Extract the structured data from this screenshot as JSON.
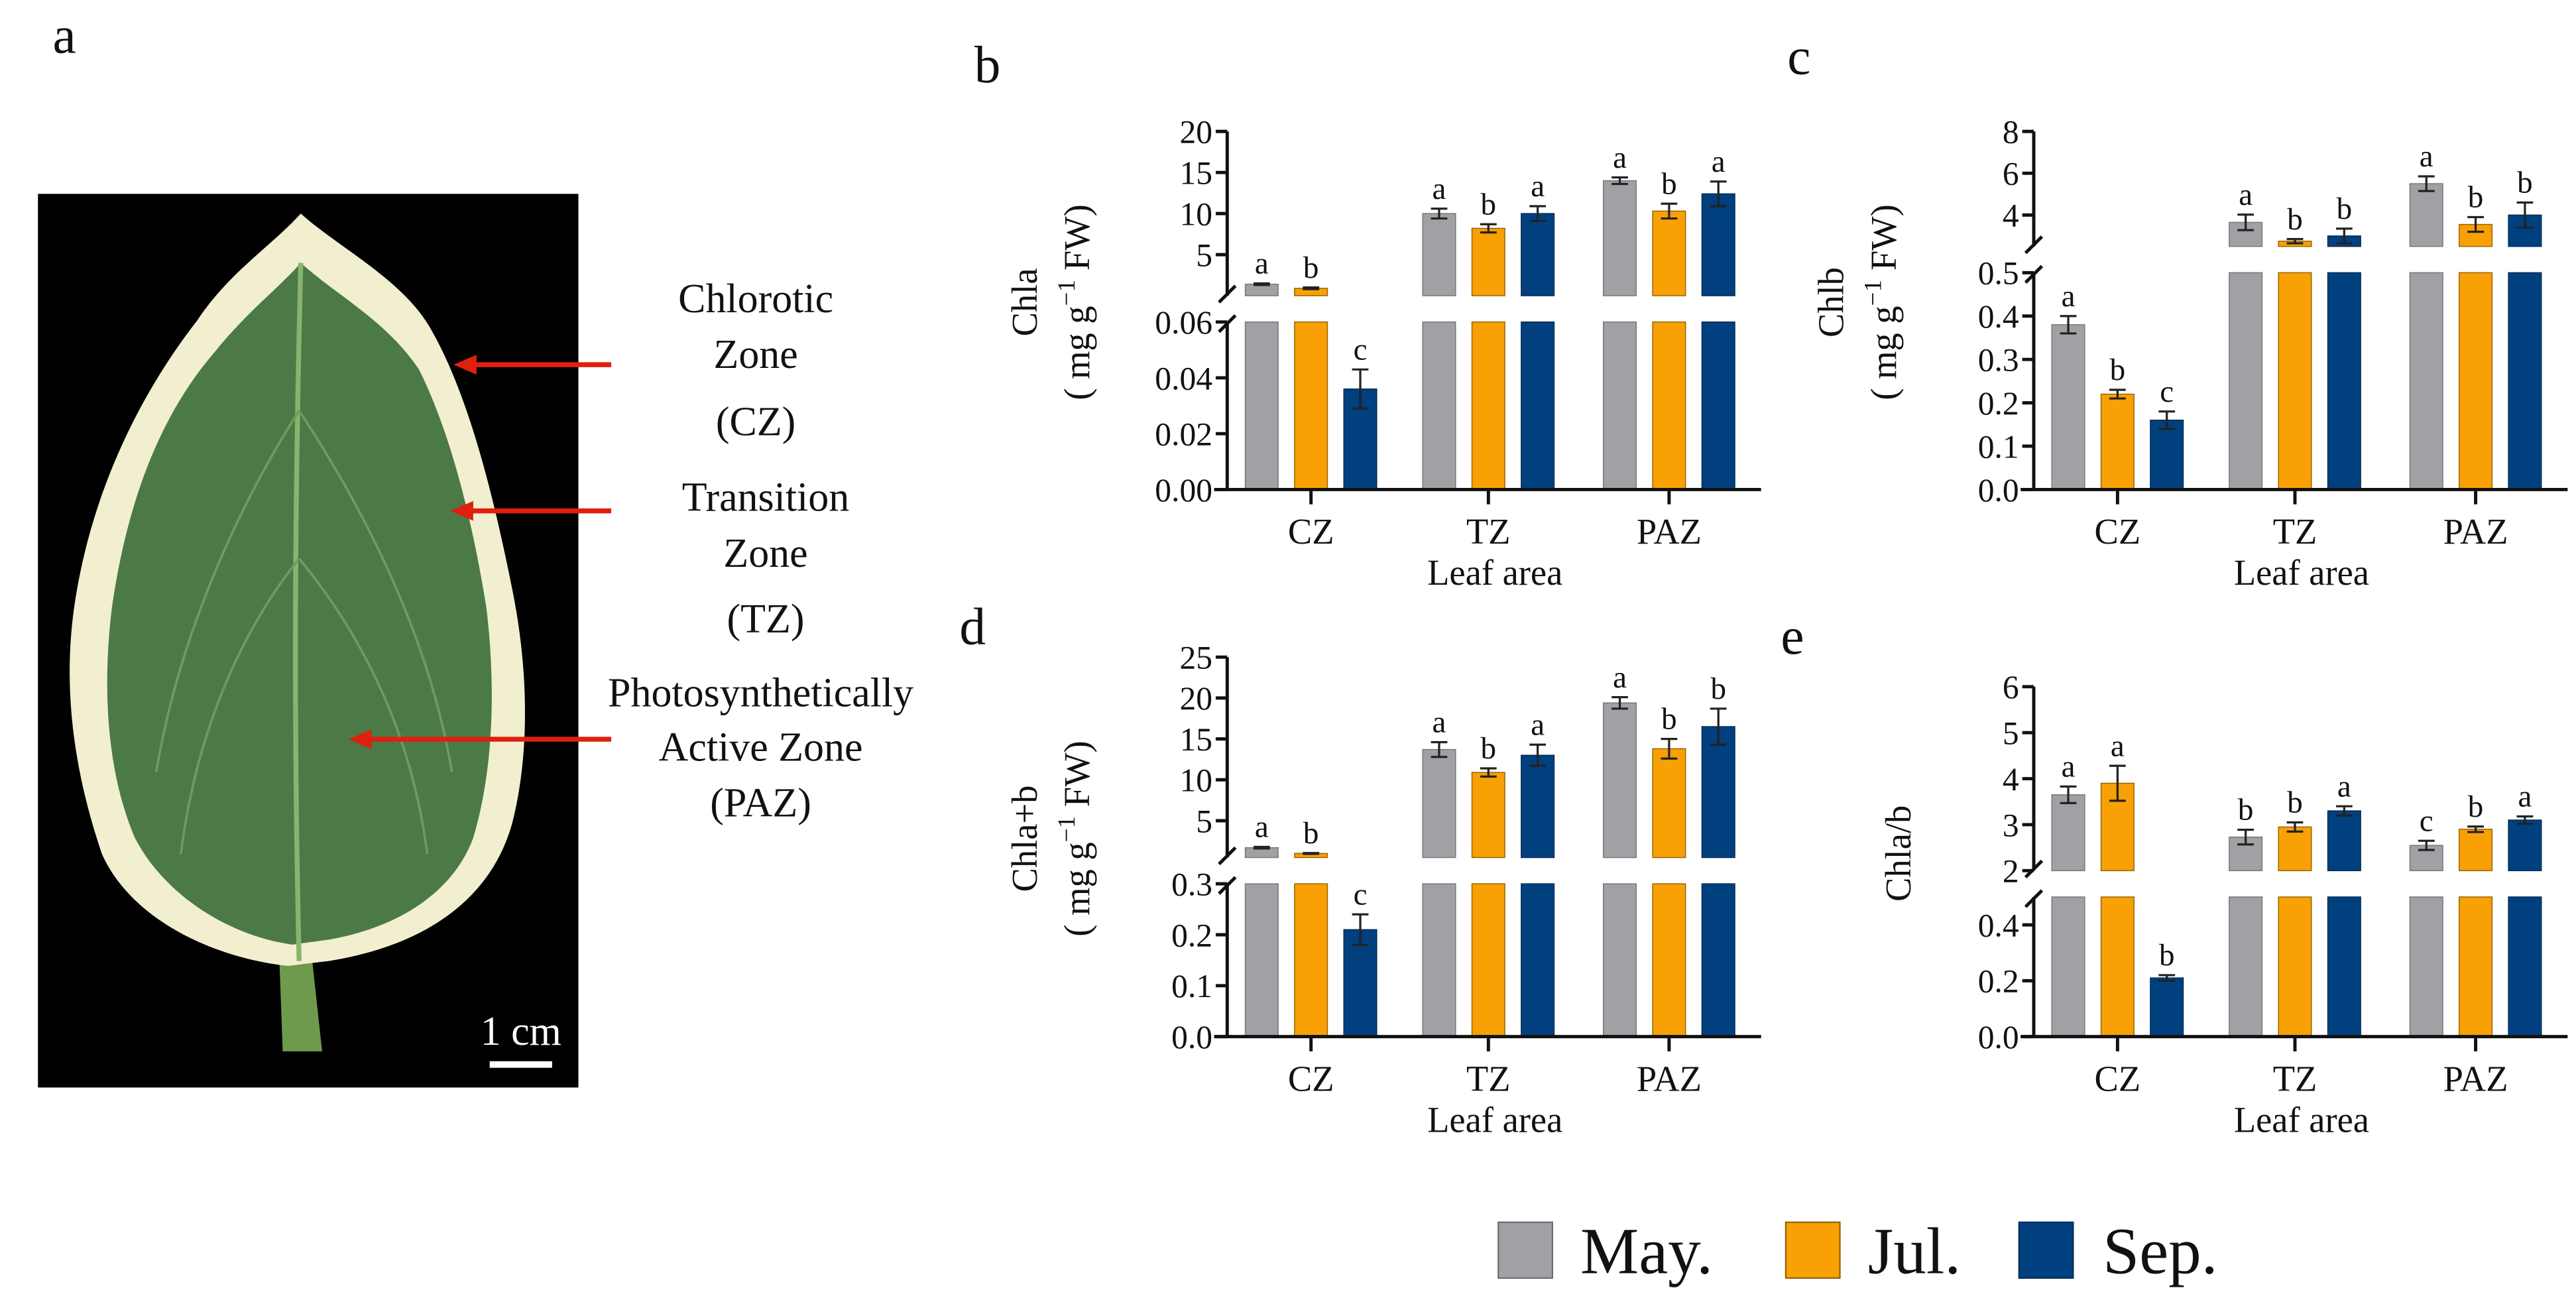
{
  "panel_a": {
    "letter": "a",
    "zones": [
      {
        "lines": [
          "Chlorotic",
          "Zone",
          "(CZ)"
        ]
      },
      {
        "lines": [
          "Transition",
          "Zone",
          "(TZ)"
        ]
      },
      {
        "lines": [
          "Photosynthetically",
          "Active Zone",
          "(PAZ)"
        ]
      }
    ],
    "scale_bar": "1 cm",
    "colors": {
      "background": "#000000",
      "margin": "#f1efcf",
      "green": "#4b7a46",
      "arrow": "#e0200f"
    }
  },
  "legend": [
    {
      "label": "May.",
      "color": "#a0a0a5"
    },
    {
      "label": "Jul.",
      "color": "#f8a004"
    },
    {
      "label": "Sep.",
      "color": "#00407f"
    }
  ],
  "chart_data": [
    {
      "panel": "b",
      "type": "bar",
      "ylabel": "Chla",
      "unit_prefix": "( mg g",
      "unit_exp": "−1",
      "unit_suffix": " FW)",
      "xlabel": "Leaf area",
      "categories": [
        "CZ",
        "TZ",
        "PAZ"
      ],
      "upper_ylim": [
        0,
        20
      ],
      "lower_ylim": [
        0,
        0.06
      ],
      "upper_ticks": [
        {
          "v": 5,
          "label": "5"
        },
        {
          "v": 10,
          "label": "10"
        },
        {
          "v": 15,
          "label": "15"
        },
        {
          "v": 20,
          "label": "20"
        }
      ],
      "lower_ticks": [
        {
          "v": 0,
          "label": "0.00"
        },
        {
          "v": 0.02,
          "label": "0.02"
        },
        {
          "v": 0.04,
          "label": "0.04"
        },
        {
          "v": 0.06,
          "label": "0.06"
        }
      ],
      "series": [
        {
          "name": "May.",
          "values": [
            1.4,
            10.0,
            14.0
          ],
          "errors": [
            0.1,
            0.6,
            0.4
          ],
          "letters": [
            "a",
            "a",
            "a"
          ]
        },
        {
          "name": "Jul.",
          "values": [
            0.9,
            8.2,
            10.3
          ],
          "errors": [
            0.1,
            0.5,
            0.9
          ],
          "letters": [
            "b",
            "b",
            "b"
          ]
        },
        {
          "name": "Sep.",
          "values": [
            0.036,
            10.0,
            12.4
          ],
          "errors": [
            0.007,
            0.9,
            1.5
          ],
          "letters": [
            "c",
            "a",
            "a"
          ]
        }
      ]
    },
    {
      "panel": "c",
      "type": "bar",
      "ylabel": "Chlb",
      "unit_prefix": "( mg g",
      "unit_exp": "−1",
      "unit_suffix": " FW)",
      "xlabel": "Leaf area",
      "categories": [
        "CZ",
        "TZ",
        "PAZ"
      ],
      "upper_ylim": [
        2.5,
        8
      ],
      "lower_ylim": [
        0,
        0.5
      ],
      "upper_ticks": [
        {
          "v": 4,
          "label": "4"
        },
        {
          "v": 6,
          "label": "6"
        },
        {
          "v": 8,
          "label": "8"
        }
      ],
      "lower_ticks": [
        {
          "v": 0,
          "label": "0.0"
        },
        {
          "v": 0.1,
          "label": "0.1"
        },
        {
          "v": 0.2,
          "label": "0.2"
        },
        {
          "v": 0.3,
          "label": "0.3"
        },
        {
          "v": 0.4,
          "label": "0.4"
        },
        {
          "v": 0.5,
          "label": "0.5"
        }
      ],
      "series": [
        {
          "name": "May.",
          "values": [
            0.38,
            3.65,
            5.5
          ],
          "errors": [
            0.02,
            0.37,
            0.35
          ],
          "letters": [
            "a",
            "a",
            "a"
          ]
        },
        {
          "name": "Jul.",
          "values": [
            0.22,
            2.75,
            3.55
          ],
          "errors": [
            0.01,
            0.1,
            0.35
          ],
          "letters": [
            "b",
            "b",
            "b"
          ]
        },
        {
          "name": "Sep.",
          "values": [
            0.16,
            3.0,
            4.0
          ],
          "errors": [
            0.02,
            0.35,
            0.6
          ],
          "letters": [
            "c",
            "b",
            "b"
          ]
        }
      ]
    },
    {
      "panel": "d",
      "type": "bar",
      "ylabel": "Chla+b",
      "unit_prefix": "( mg g",
      "unit_exp": "−1",
      "unit_suffix": " FW)",
      "xlabel": "Leaf area",
      "categories": [
        "CZ",
        "TZ",
        "PAZ"
      ],
      "upper_ylim": [
        0.5,
        25
      ],
      "lower_ylim": [
        0,
        0.3
      ],
      "upper_ticks": [
        {
          "v": 5,
          "label": "5"
        },
        {
          "v": 10,
          "label": "10"
        },
        {
          "v": 15,
          "label": "15"
        },
        {
          "v": 20,
          "label": "20"
        },
        {
          "v": 25,
          "label": "25"
        }
      ],
      "lower_ticks": [
        {
          "v": 0,
          "label": "0.0"
        },
        {
          "v": 0.1,
          "label": "0.1"
        },
        {
          "v": 0.2,
          "label": "0.2"
        },
        {
          "v": 0.3,
          "label": "0.3"
        }
      ],
      "series": [
        {
          "name": "May.",
          "values": [
            1.7,
            13.7,
            19.4
          ],
          "errors": [
            0.1,
            0.9,
            0.7
          ],
          "letters": [
            "a",
            "a",
            "a"
          ]
        },
        {
          "name": "Jul.",
          "values": [
            1.0,
            10.9,
            13.8
          ],
          "errors": [
            0.05,
            0.5,
            1.2
          ],
          "letters": [
            "b",
            "b",
            "b"
          ]
        },
        {
          "name": "Sep.",
          "values": [
            0.21,
            13.0,
            16.5
          ],
          "errors": [
            0.03,
            1.3,
            2.2
          ],
          "letters": [
            "c",
            "a",
            "b"
          ]
        }
      ]
    },
    {
      "panel": "e",
      "type": "bar",
      "ylabel": "Chla/b",
      "xlabel": "Leaf area",
      "categories": [
        "CZ",
        "TZ",
        "PAZ"
      ],
      "upper_ylim": [
        2,
        6
      ],
      "lower_ylim": [
        0,
        0.5
      ],
      "upper_ticks": [
        {
          "v": 2,
          "label": "2"
        },
        {
          "v": 3,
          "label": "3"
        },
        {
          "v": 4,
          "label": "4"
        },
        {
          "v": 5,
          "label": "5"
        },
        {
          "v": 6,
          "label": "6"
        }
      ],
      "lower_ticks": [
        {
          "v": 0,
          "label": "0.0"
        },
        {
          "v": 0.2,
          "label": "0.2"
        },
        {
          "v": 0.4,
          "label": "0.4"
        }
      ],
      "series": [
        {
          "name": "May.",
          "values": [
            3.65,
            2.73,
            2.55
          ],
          "errors": [
            0.18,
            0.16,
            0.1
          ],
          "letters": [
            "a",
            "b",
            "c"
          ]
        },
        {
          "name": "Jul.",
          "values": [
            3.9,
            2.95,
            2.9
          ],
          "errors": [
            0.38,
            0.1,
            0.06
          ],
          "letters": [
            "a",
            "b",
            "b"
          ]
        },
        {
          "name": "Sep.",
          "values": [
            0.21,
            3.3,
            3.1
          ],
          "errors": [
            0.01,
            0.1,
            0.08
          ],
          "letters": [
            "b",
            "a",
            "a"
          ]
        }
      ]
    }
  ]
}
